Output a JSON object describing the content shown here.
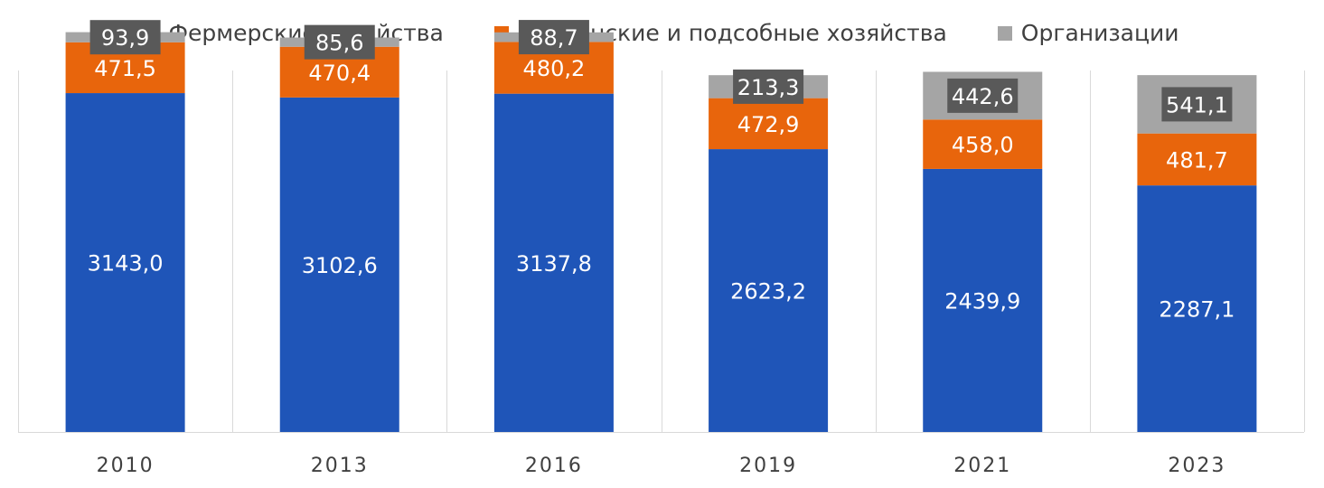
{
  "chart_data": {
    "type": "bar",
    "stacked": true,
    "categories": [
      "2010",
      "2013",
      "2016",
      "2019",
      "2021",
      "2023"
    ],
    "series": [
      {
        "name": "Фермерские хозяйства",
        "color": "#1f55b8",
        "values": [
          3143.0,
          3102.6,
          3137.8,
          2623.2,
          2439.9,
          2287.1
        ],
        "labels": [
          "3143,0",
          "3102,6",
          "3137,8",
          "2623,2",
          "2439,9",
          "2287,1"
        ]
      },
      {
        "name": "Дехканские и подсобные хозяйства",
        "color": "#e8650c",
        "values": [
          471.5,
          470.4,
          480.2,
          472.9,
          458.0,
          481.7
        ],
        "labels": [
          "471,5",
          "470,4",
          "480,2",
          "472,9",
          "458,0",
          "481,7"
        ]
      },
      {
        "name": "Организации",
        "color": "#a5a5a5",
        "values": [
          93.9,
          85.6,
          88.7,
          213.3,
          442.6,
          541.1
        ],
        "labels": [
          "93,9",
          "85,6",
          "88,7",
          "213,3",
          "442,6",
          "541,1"
        ]
      }
    ],
    "ylim": [
      0,
      3900
    ],
    "legend_position": "top",
    "grid": false,
    "category_separators": true
  }
}
